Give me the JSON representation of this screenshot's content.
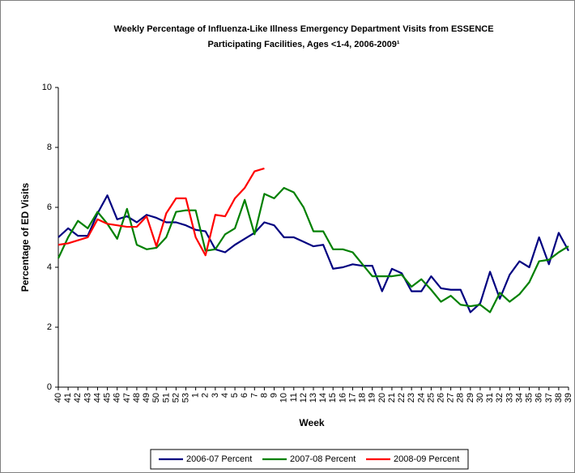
{
  "chart_data": {
    "type": "line",
    "title": [
      "Weekly Percentage of Influenza-Like Illness Emergency Department Visits from ESSENCE",
      "Participating Facilities, Ages <1-4, 2006-2009¹"
    ],
    "x_label": "Week",
    "y_label": "Percentage of ED Visits",
    "categories": [
      "40",
      "41",
      "42",
      "43",
      "44",
      "45",
      "46",
      "47",
      "48",
      "49",
      "50",
      "51",
      "52",
      "53",
      "1",
      "2",
      "3",
      "4",
      "5",
      "6",
      "7",
      "8",
      "9",
      "10",
      "11",
      "12",
      "13",
      "14",
      "15",
      "16",
      "17",
      "18",
      "19",
      "20",
      "21",
      "22",
      "23",
      "24",
      "25",
      "26",
      "27",
      "28",
      "29",
      "30",
      "31",
      "32",
      "33",
      "34",
      "35",
      "36",
      "37",
      "38",
      "39"
    ],
    "series": [
      {
        "name": "2006-07 Percent",
        "color": "#000080",
        "values": [
          5.0,
          5.3,
          5.05,
          5.05,
          5.8,
          6.4,
          5.6,
          5.7,
          5.5,
          5.75,
          5.65,
          5.5,
          5.5,
          5.4,
          5.25,
          5.2,
          4.6,
          4.5,
          4.75,
          4.95,
          5.15,
          5.5,
          5.4,
          5.0,
          5.0,
          4.85,
          4.7,
          4.75,
          3.95,
          4.0,
          4.1,
          4.05,
          4.05,
          3.2,
          3.95,
          3.8,
          3.2,
          3.2,
          3.7,
          3.3,
          3.25,
          3.25,
          2.5,
          2.8,
          3.85,
          2.95,
          3.75,
          4.2,
          4.0,
          5.0,
          4.1,
          5.15,
          4.55
        ]
      },
      {
        "name": "2007-08 Percent",
        "color": "#008000",
        "values": [
          4.3,
          5.0,
          5.55,
          5.3,
          5.85,
          5.45,
          4.95,
          5.95,
          4.75,
          4.6,
          4.65,
          5.0,
          5.85,
          5.9,
          5.9,
          4.55,
          4.6,
          5.1,
          5.3,
          6.25,
          5.1,
          6.45,
          6.3,
          6.65,
          6.5,
          6.0,
          5.2,
          5.2,
          4.6,
          4.6,
          4.5,
          4.1,
          3.7,
          3.7,
          3.7,
          3.75,
          3.35,
          3.6,
          3.25,
          2.85,
          3.05,
          2.75,
          2.7,
          2.75,
          2.5,
          3.15,
          2.85,
          3.1,
          3.5,
          4.2,
          4.25,
          4.5,
          4.7
        ]
      },
      {
        "name": "2008-09 Percent",
        "color": "#ff0000",
        "values": [
          4.75,
          4.8,
          4.9,
          5.0,
          5.6,
          5.45,
          5.4,
          5.35,
          5.35,
          5.7,
          4.7,
          5.8,
          6.3,
          6.3,
          5.0,
          4.4,
          5.75,
          5.7,
          6.3,
          6.65,
          7.2,
          7.3,
          null,
          null,
          null,
          null,
          null,
          null,
          null,
          null,
          null,
          null,
          null,
          null,
          null,
          null,
          null,
          null,
          null,
          null,
          null,
          null,
          null,
          null,
          null,
          null,
          null,
          null,
          null,
          null,
          null,
          null,
          null
        ]
      }
    ],
    "ylim": [
      0,
      10
    ],
    "yticks": [
      0,
      2,
      4,
      6,
      8,
      10
    ],
    "grid": false,
    "legend": "bottom"
  }
}
